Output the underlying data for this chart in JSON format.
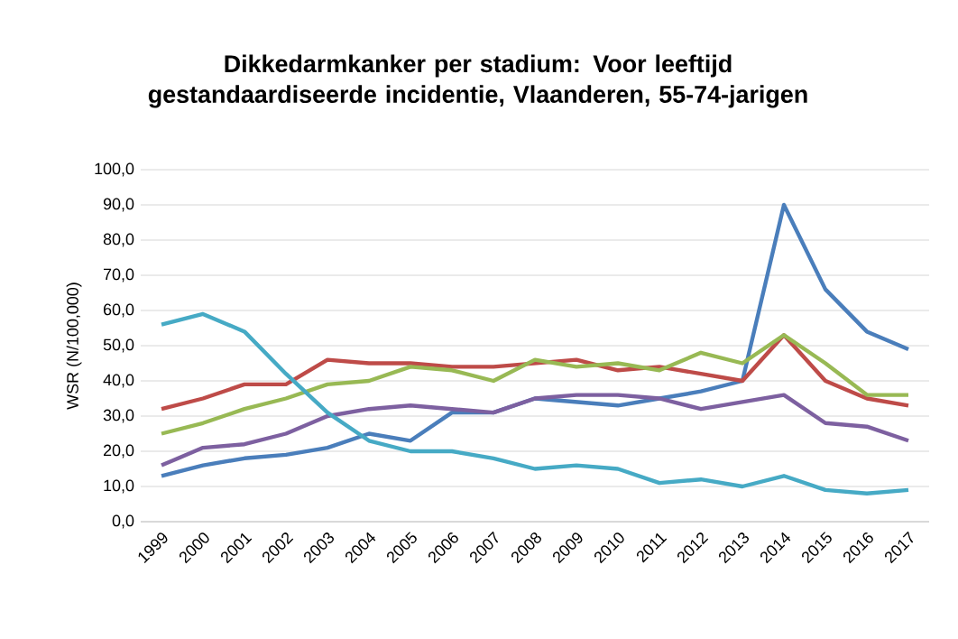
{
  "chart_data": {
    "type": "line",
    "title": "Dikkedarmkanker per stadium: Voor leeftijd gestandaardiseerde incidentie, Vlaanderen, 55-74-jarigen",
    "ylabel": "WSR (N/100,000)",
    "categories": [
      "1999",
      "2000",
      "2001",
      "2002",
      "2003",
      "2004",
      "2005",
      "2006",
      "2007",
      "2008",
      "2009",
      "2010",
      "2011",
      "2012",
      "2013",
      "2014",
      "2015",
      "2016",
      "2017"
    ],
    "series": [
      {
        "color": "#4a7ebb",
        "values": [
          13,
          16,
          18,
          19,
          21,
          25,
          23,
          31,
          31,
          35,
          34,
          33,
          35,
          37,
          40,
          90,
          66,
          54,
          49
        ]
      },
      {
        "color": "#be4b48",
        "values": [
          32,
          35,
          39,
          39,
          46,
          45,
          45,
          44,
          44,
          45,
          46,
          43,
          44,
          42,
          40,
          53,
          40,
          35,
          33
        ]
      },
      {
        "color": "#98b954",
        "values": [
          25,
          28,
          32,
          35,
          39,
          40,
          44,
          43,
          40,
          46,
          44,
          45,
          43,
          48,
          45,
          53,
          45,
          36,
          36
        ]
      },
      {
        "color": "#7d60a0",
        "values": [
          16,
          21,
          22,
          25,
          30,
          32,
          33,
          32,
          31,
          35,
          36,
          36,
          35,
          32,
          34,
          36,
          28,
          27,
          23
        ]
      },
      {
        "color": "#46aac5",
        "values": [
          56,
          59,
          54,
          42,
          31,
          23,
          20,
          20,
          18,
          15,
          16,
          15,
          11,
          12,
          10,
          13,
          9,
          8,
          9
        ]
      }
    ],
    "ylim": [
      0,
      100
    ],
    "yticks": [
      {
        "value": 0,
        "label": "0,0"
      },
      {
        "value": 10,
        "label": "10,0"
      },
      {
        "value": 20,
        "label": "20,0"
      },
      {
        "value": 30,
        "label": "30,0"
      },
      {
        "value": 40,
        "label": "40,0"
      },
      {
        "value": 50,
        "label": "50,0"
      },
      {
        "value": 60,
        "label": "60,0"
      },
      {
        "value": 70,
        "label": "70,0"
      },
      {
        "value": 80,
        "label": "80,0"
      },
      {
        "value": 90,
        "label": "90,0"
      },
      {
        "value": 100,
        "label": "100,0"
      }
    ],
    "grid": "y",
    "marker": "none",
    "line_style": "solid"
  }
}
